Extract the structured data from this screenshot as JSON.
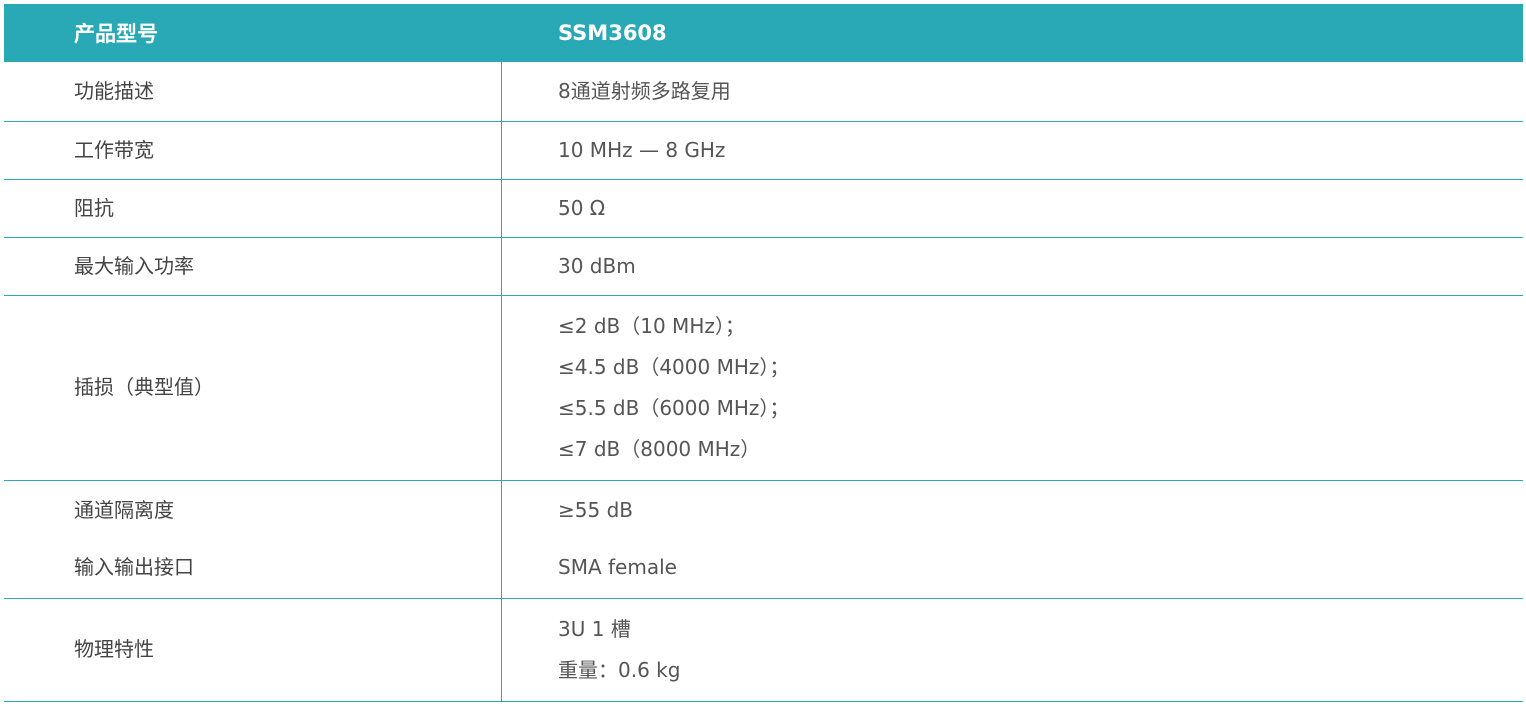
{
  "header": {
    "label": "产品型号",
    "value": "SSM3608"
  },
  "accent_color": "#29a8b5",
  "rows": [
    {
      "labels": [
        "功能描述"
      ],
      "values": [
        "8通道射频多路复用"
      ]
    },
    {
      "labels": [
        "工作带宽"
      ],
      "values": [
        "10 MHz — 8 GHz"
      ]
    },
    {
      "labels": [
        "阻抗"
      ],
      "values": [
        "50 Ω"
      ]
    },
    {
      "labels": [
        "最大输入功率"
      ],
      "values": [
        "30 dBm"
      ]
    },
    {
      "labels": [
        "插损（典型值）"
      ],
      "values": [
        "≤2 dB（10 MHz）；",
        "≤4.5 dB（4000 MHz）；",
        "≤5.5 dB（6000 MHz）；",
        "≤7 dB（8000 MHz）"
      ]
    },
    {
      "labels": [
        "通道隔离度",
        "输入输出接口"
      ],
      "values": [
        "≥55 dB",
        "SMA female"
      ]
    },
    {
      "labels": [
        "物理特性"
      ],
      "values": [
        "3U 1 槽",
        "重量：0.6 kg"
      ]
    }
  ]
}
